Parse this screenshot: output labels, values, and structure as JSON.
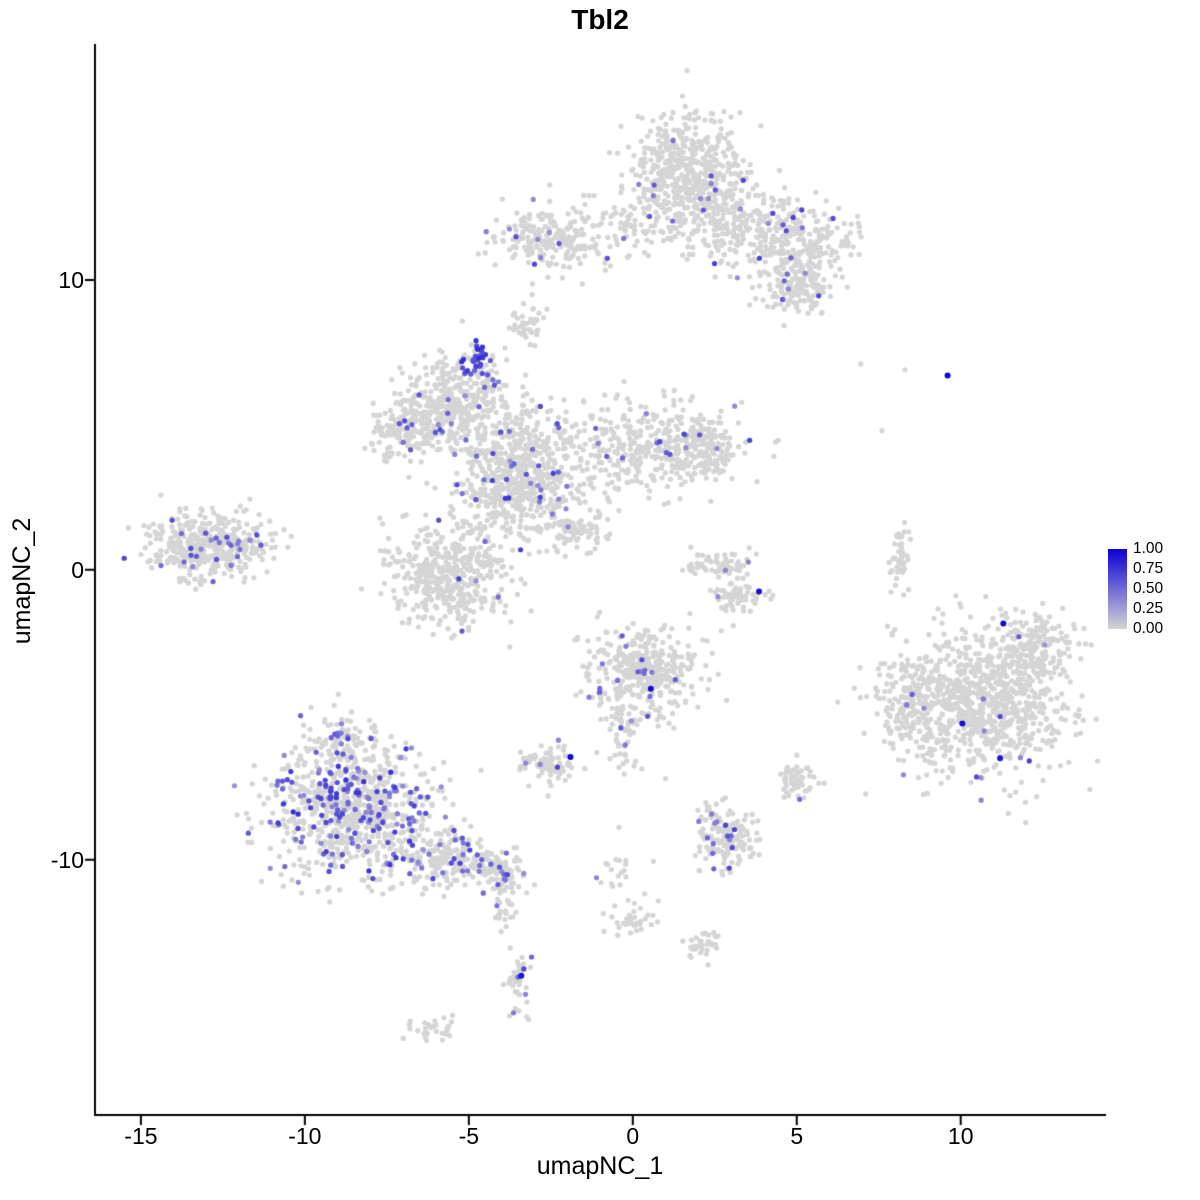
{
  "chart_data": {
    "type": "scatter",
    "title": "Tbl2",
    "xlabel": "umapNC_1",
    "ylabel": "umapNC_2",
    "xlim": [
      -16.4,
      14.4
    ],
    "ylim": [
      -18.8,
      18.1
    ],
    "x_ticks": [
      -15,
      -10,
      -5,
      0,
      5,
      10
    ],
    "y_ticks": [
      -10,
      0,
      10
    ],
    "grid": false,
    "legend": {
      "position": "right",
      "ticks": [
        "1.00",
        "0.75",
        "0.50",
        "0.25",
        "0.00"
      ],
      "low_color": "#D5D5D5",
      "high_color": "#0B00D5"
    },
    "point_radius": 2.6,
    "seed": 42,
    "clusters": [
      {
        "name": "top-main",
        "cx": 1.6,
        "cy": 13.9,
        "sx": 0.85,
        "sy": 0.85,
        "n": 450,
        "f": 0.03,
        "vmin": 0.3,
        "vmax": 0.7
      },
      {
        "name": "top-mid",
        "cx": 2.6,
        "cy": 12.3,
        "sx": 0.9,
        "sy": 0.7,
        "n": 240,
        "f": 0.03,
        "vmin": 0.3,
        "vmax": 0.7
      },
      {
        "name": "top-right-arm",
        "cx": 4.8,
        "cy": 11.3,
        "sx": 1.0,
        "sy": 0.65,
        "n": 260,
        "f": 0.035,
        "vmin": 0.3,
        "vmax": 0.7
      },
      {
        "name": "top-right-lower",
        "cx": 4.9,
        "cy": 9.7,
        "sx": 0.6,
        "sy": 0.5,
        "n": 150,
        "f": 0.03,
        "vmin": 0.3,
        "vmax": 0.7
      },
      {
        "name": "top-bridge",
        "cx": 0.0,
        "cy": 12.0,
        "sx": 0.7,
        "sy": 0.5,
        "n": 80,
        "f": 0.03,
        "vmin": 0.3,
        "vmax": 0.6
      },
      {
        "name": "top-left-small",
        "cx": -2.5,
        "cy": 11.5,
        "sx": 0.8,
        "sy": 0.55,
        "n": 220,
        "f": 0.05,
        "vmin": 0.3,
        "vmax": 0.7
      },
      {
        "name": "tiny-upper-center",
        "cx": -3.2,
        "cy": 8.5,
        "sx": 0.25,
        "sy": 0.35,
        "n": 40,
        "f": 0.0,
        "vmin": 0.3,
        "vmax": 0.6
      },
      {
        "name": "center-upper-left",
        "cx": -5.7,
        "cy": 5.7,
        "sx": 0.65,
        "sy": 0.75,
        "n": 280,
        "f": 0.05,
        "vmin": 0.3,
        "vmax": 0.7
      },
      {
        "name": "center-hotspot",
        "cx": -4.75,
        "cy": 7.3,
        "sx": 0.2,
        "sy": 0.3,
        "n": 45,
        "f": 0.75,
        "vmin": 0.45,
        "vmax": 0.8
      },
      {
        "name": "center-west",
        "cx": -7.0,
        "cy": 4.9,
        "sx": 0.5,
        "sy": 0.6,
        "n": 140,
        "f": 0.04,
        "vmin": 0.3,
        "vmax": 0.7
      },
      {
        "name": "center-main",
        "cx": -3.6,
        "cy": 3.4,
        "sx": 1.0,
        "sy": 1.1,
        "n": 700,
        "f": 0.05,
        "vmin": 0.3,
        "vmax": 0.75
      },
      {
        "name": "center-east-arm",
        "cx": 0.3,
        "cy": 4.3,
        "sx": 1.2,
        "sy": 0.8,
        "n": 350,
        "f": 0.035,
        "vmin": 0.3,
        "vmax": 0.7
      },
      {
        "name": "center-east-tip",
        "cx": 2.3,
        "cy": 4.2,
        "sx": 0.5,
        "sy": 0.6,
        "n": 150,
        "f": 0.02,
        "vmin": 0.3,
        "vmax": 0.6
      },
      {
        "name": "center-south",
        "cx": -5.6,
        "cy": -0.2,
        "sx": 0.9,
        "sy": 0.85,
        "n": 450,
        "f": 0.02,
        "vmin": 0.3,
        "vmax": 0.7
      },
      {
        "name": "center-trail",
        "cx": -1.8,
        "cy": 1.5,
        "sx": 0.5,
        "sy": 0.4,
        "n": 90,
        "f": 0.03,
        "vmin": 0.3,
        "vmax": 0.6
      },
      {
        "name": "center-north-spur",
        "cx": -4.4,
        "cy": 6.3,
        "sx": 0.3,
        "sy": 0.5,
        "n": 60,
        "f": 0.1,
        "vmin": 0.35,
        "vmax": 0.7
      },
      {
        "name": "far-left",
        "cx": -12.9,
        "cy": 0.8,
        "sx": 1.0,
        "sy": 0.55,
        "n": 420,
        "f": 0.06,
        "vmin": 0.35,
        "vmax": 0.7
      },
      {
        "name": "mid-right-arc-a",
        "cx": 2.6,
        "cy": 0.2,
        "sx": 0.5,
        "sy": 0.25,
        "n": 60,
        "f": 0.015,
        "vmin": 0.3,
        "vmax": 0.6
      },
      {
        "name": "mid-right-arc-b",
        "cx": 3.3,
        "cy": -0.9,
        "sx": 0.45,
        "sy": 0.3,
        "n": 70,
        "f": 0.015,
        "vmin": 0.3,
        "vmax": 0.6
      },
      {
        "name": "right-streak",
        "cx": 8.2,
        "cy": 0.3,
        "sx": 0.15,
        "sy": 0.6,
        "n": 45,
        "f": 0.04,
        "vmin": 0.4,
        "vmax": 0.7
      },
      {
        "name": "right-main",
        "cx": 10.6,
        "cy": -4.6,
        "sx": 1.3,
        "sy": 1.2,
        "n": 900,
        "f": 0.008,
        "vmin": 0.3,
        "vmax": 0.7
      },
      {
        "name": "right-west-spur",
        "cx": 8.4,
        "cy": -4.6,
        "sx": 0.45,
        "sy": 0.8,
        "n": 120,
        "f": 0.01,
        "vmin": 0.3,
        "vmax": 0.6
      },
      {
        "name": "right-northeast",
        "cx": 12.3,
        "cy": -2.6,
        "sx": 0.6,
        "sy": 0.6,
        "n": 150,
        "f": 0.01,
        "vmin": 0.3,
        "vmax": 0.6
      },
      {
        "name": "bottomleft-main",
        "cx": -8.6,
        "cy": -8.3,
        "sx": 1.2,
        "sy": 1.1,
        "n": 800,
        "f": 0.2,
        "vmin": 0.3,
        "vmax": 0.78
      },
      {
        "name": "bottomleft-east",
        "cx": -5.8,
        "cy": -9.9,
        "sx": 0.8,
        "sy": 0.5,
        "n": 200,
        "f": 0.12,
        "vmin": 0.3,
        "vmax": 0.7
      },
      {
        "name": "bottomleft-tail",
        "cx": -4.1,
        "cy": -10.4,
        "sx": 0.4,
        "sy": 0.35,
        "n": 90,
        "f": 0.12,
        "vmin": 0.3,
        "vmax": 0.7
      },
      {
        "name": "bottomleft-north-spur",
        "cx": -8.8,
        "cy": -5.9,
        "sx": 0.5,
        "sy": 0.5,
        "n": 90,
        "f": 0.15,
        "vmin": 0.3,
        "vmax": 0.7
      },
      {
        "name": "below-tail-bit",
        "cx": -3.9,
        "cy": -11.7,
        "sx": 0.2,
        "sy": 0.3,
        "n": 25,
        "f": 0.12,
        "vmin": 0.35,
        "vmax": 0.6
      },
      {
        "name": "small-center-bottom",
        "cx": -2.6,
        "cy": -6.7,
        "sx": 0.45,
        "sy": 0.35,
        "n": 80,
        "f": 0.06,
        "vmin": 0.35,
        "vmax": 0.7
      },
      {
        "name": "mid-bottom",
        "cx": 0.3,
        "cy": -3.5,
        "sx": 0.85,
        "sy": 0.75,
        "n": 380,
        "f": 0.035,
        "vmin": 0.3,
        "vmax": 0.7
      },
      {
        "name": "mid-bottom-neck",
        "cx": -0.3,
        "cy": -5.6,
        "sx": 0.25,
        "sy": 0.6,
        "n": 50,
        "f": 0.04,
        "vmin": 0.3,
        "vmax": 0.6
      },
      {
        "name": "south-small",
        "cx": 2.8,
        "cy": -9.2,
        "sx": 0.5,
        "sy": 0.55,
        "n": 170,
        "f": 0.05,
        "vmin": 0.35,
        "vmax": 0.7
      },
      {
        "name": "south-tiny",
        "cx": 5.0,
        "cy": -7.2,
        "sx": 0.3,
        "sy": 0.35,
        "n": 60,
        "f": 0.035,
        "vmin": 0.3,
        "vmax": 0.6
      },
      {
        "name": "bottom-bit-a",
        "cx": 0.0,
        "cy": -12.1,
        "sx": 0.3,
        "sy": 0.25,
        "n": 30,
        "f": 0.05,
        "vmin": 0.4,
        "vmax": 0.6
      },
      {
        "name": "bottom-bit-b",
        "cx": 2.1,
        "cy": -12.9,
        "sx": 0.35,
        "sy": 0.25,
        "n": 35,
        "f": 0.02,
        "vmin": 0.3,
        "vmax": 0.5
      },
      {
        "name": "bottom-streak",
        "cx": -3.5,
        "cy": -14.2,
        "sx": 0.18,
        "sy": 0.55,
        "n": 45,
        "f": 0.1,
        "vmin": 0.35,
        "vmax": 0.7
      },
      {
        "name": "bottom-bit-c",
        "cx": -6.1,
        "cy": -15.8,
        "sx": 0.4,
        "sy": 0.2,
        "n": 30,
        "f": 0.0,
        "vmin": 0.3,
        "vmax": 0.5
      },
      {
        "name": "bottom-trail",
        "cx": -0.3,
        "cy": -10.6,
        "sx": 0.4,
        "sy": 0.7,
        "n": 25,
        "f": 0.04,
        "vmin": 0.3,
        "vmax": 0.6
      }
    ],
    "singles": [
      {
        "x": 6.95,
        "y": 7.1
      },
      {
        "x": 8.3,
        "y": 6.9
      },
      {
        "x": 7.6,
        "y": 4.8
      },
      {
        "x": -1.7,
        "y": -2.4
      },
      {
        "x": 2.7,
        "y": -2.1
      },
      {
        "x": 1.0,
        "y": -7.2
      }
    ],
    "highlights": [
      {
        "x": 9.6,
        "y": 6.7,
        "v": 1.0
      },
      {
        "x": 3.85,
        "y": -0.75,
        "v": 0.95
      },
      {
        "x": -1.9,
        "y": -6.45,
        "v": 1.0
      },
      {
        "x": 0.55,
        "y": -4.1,
        "v": 0.95
      },
      {
        "x": 11.3,
        "y": -1.85,
        "v": 1.0
      },
      {
        "x": 10.05,
        "y": -5.3,
        "v": 0.95
      },
      {
        "x": 11.2,
        "y": -6.5,
        "v": 0.9
      },
      {
        "x": -3.4,
        "y": -14.0,
        "v": 0.9
      }
    ]
  }
}
